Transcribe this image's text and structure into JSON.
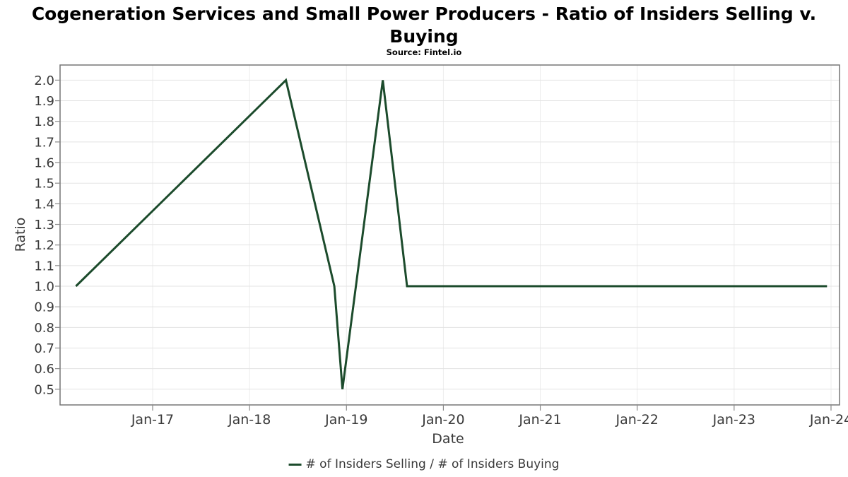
{
  "title": {
    "line1": "Cogeneration Services and Small Power Producers - Ratio of Insiders Selling v.",
    "line2": "Buying"
  },
  "source": "Source: Fintel.io",
  "legend": {
    "label": "# of Insiders Selling / # of Insiders Buying",
    "marker_color": "#1c4b2c"
  },
  "chart_data": {
    "type": "line",
    "title": "Cogeneration Services and Small Power Producers - Ratio of Insiders Selling v. Buying",
    "subtitle": "Source: Fintel.io",
    "xlabel": "Date",
    "ylabel": "Ratio",
    "x_tick_labels": [
      "Jan-17",
      "Jan-18",
      "Jan-19",
      "Jan-20",
      "Jan-21",
      "Jan-22",
      "Jan-23",
      "Jan-24"
    ],
    "y_tick_labels": [
      "0.5",
      "0.6",
      "0.7",
      "0.8",
      "0.9",
      "1.0",
      "1.1",
      "1.2",
      "1.3",
      "1.4",
      "1.5",
      "1.6",
      "1.7",
      "1.8",
      "1.9",
      "2.0"
    ],
    "ylim": [
      0.42,
      2.07
    ],
    "xlim": [
      "2016-01",
      "2024-02"
    ],
    "grid": true,
    "legend_position": "bottom-center",
    "series": [
      {
        "name": "# of Insiders Selling / # of Insiders Buying",
        "color": "#1c4b2c",
        "points": [
          [
            "2016-03",
            1.0
          ],
          [
            "2018-05",
            2.0
          ],
          [
            "2018-11",
            1.0
          ],
          [
            "2018-12",
            0.5
          ],
          [
            "2019-05",
            2.0
          ],
          [
            "2019-08",
            1.0
          ],
          [
            "2020-06",
            1.0
          ],
          [
            "2023-12",
            1.0
          ]
        ]
      }
    ]
  },
  "colors": {
    "line": "#1c4b2c",
    "grid_h": "#e3e3e3",
    "grid_v": "#ececec",
    "frame": "#757575",
    "tick": "#8a8a8a",
    "tick_text": "#3a3a3a",
    "title_text": "#000000"
  }
}
